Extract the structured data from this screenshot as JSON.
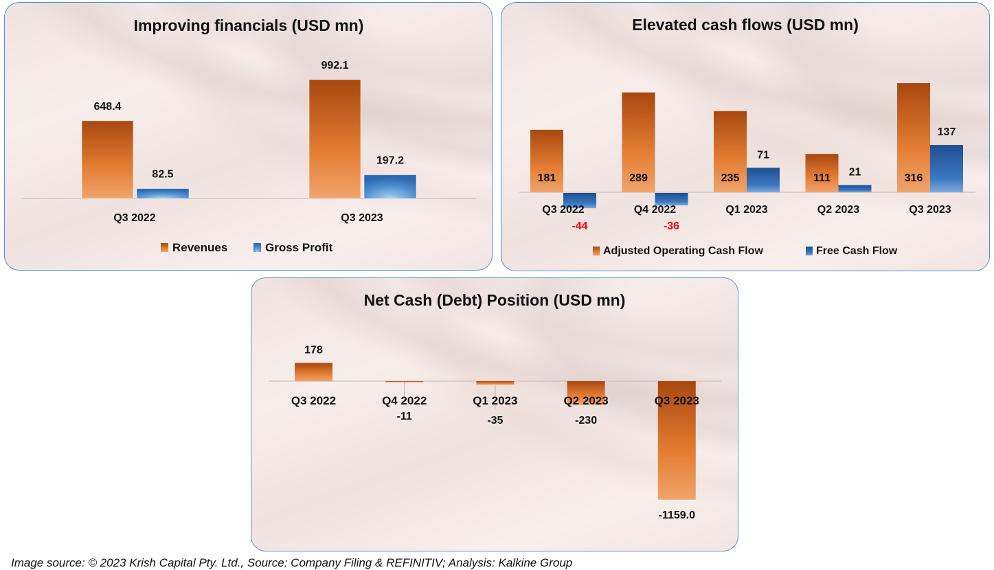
{
  "colors": {
    "orange_dark": "#a8480f",
    "orange_light": "#f0a46b",
    "orange_mid": "#e47d34",
    "blue_dark": "#1f4d93",
    "blue_light": "#9cc7ea",
    "blue_mid": "#3a78c0",
    "negative_label": "#ff0000",
    "frame": "#4a90d9"
  },
  "chart_data": [
    {
      "type": "bar",
      "title": "Improving financials (USD mn)",
      "categories": [
        "Q3 2022",
        "Q3 2023"
      ],
      "series": [
        {
          "name": "Revenues",
          "values": [
            648.4,
            992.1
          ],
          "labels": [
            "648.4",
            "992.1"
          ]
        },
        {
          "name": "Gross Profit",
          "values": [
            82.5,
            197.2
          ],
          "labels": [
            "82.5",
            "197.2"
          ]
        }
      ],
      "xlabel": "",
      "ylabel": "",
      "ylim": [
        0,
        1100
      ],
      "grid": false,
      "legend": "bottom"
    },
    {
      "type": "bar",
      "title": "Elevated cash flows (USD mn)",
      "categories": [
        "Q3 2022",
        "Q4 2022",
        "Q1 2023",
        "Q2 2023",
        "Q3 2023"
      ],
      "series": [
        {
          "name": "Adjusted Operating Cash Flow",
          "values": [
            181,
            289,
            235,
            111,
            316
          ],
          "labels": [
            "181",
            "289",
            "235",
            "111",
            "316"
          ]
        },
        {
          "name": "Free Cash Flow",
          "values": [
            -44,
            -36,
            71,
            21,
            137
          ],
          "labels": [
            "-44",
            "-36",
            "71",
            "21",
            "137"
          ]
        }
      ],
      "xlabel": "",
      "ylabel": "",
      "ylim": [
        -60,
        340
      ],
      "grid": false,
      "legend": "bottom"
    },
    {
      "type": "bar",
      "title": "Net Cash (Debt) Position (USD mn)",
      "categories": [
        "Q3 2022",
        "Q4 2022",
        "Q1 2023",
        "Q2 2023",
        "Q3 2023"
      ],
      "series": [
        {
          "name": "Net Cash (Debt)",
          "values": [
            178,
            -11,
            -35,
            -230,
            -1159.0
          ],
          "labels": [
            "178",
            "-11",
            "-35",
            "-230",
            "-1159.0"
          ]
        }
      ],
      "xlabel": "",
      "ylabel": "",
      "ylim": [
        -1300,
        300
      ],
      "grid": false,
      "legend": "none"
    }
  ],
  "footer": "Image source: © 2023 Krish Capital Pty. Ltd., Source: Company Filing & REFINITIV; Analysis: Kalkine Group"
}
